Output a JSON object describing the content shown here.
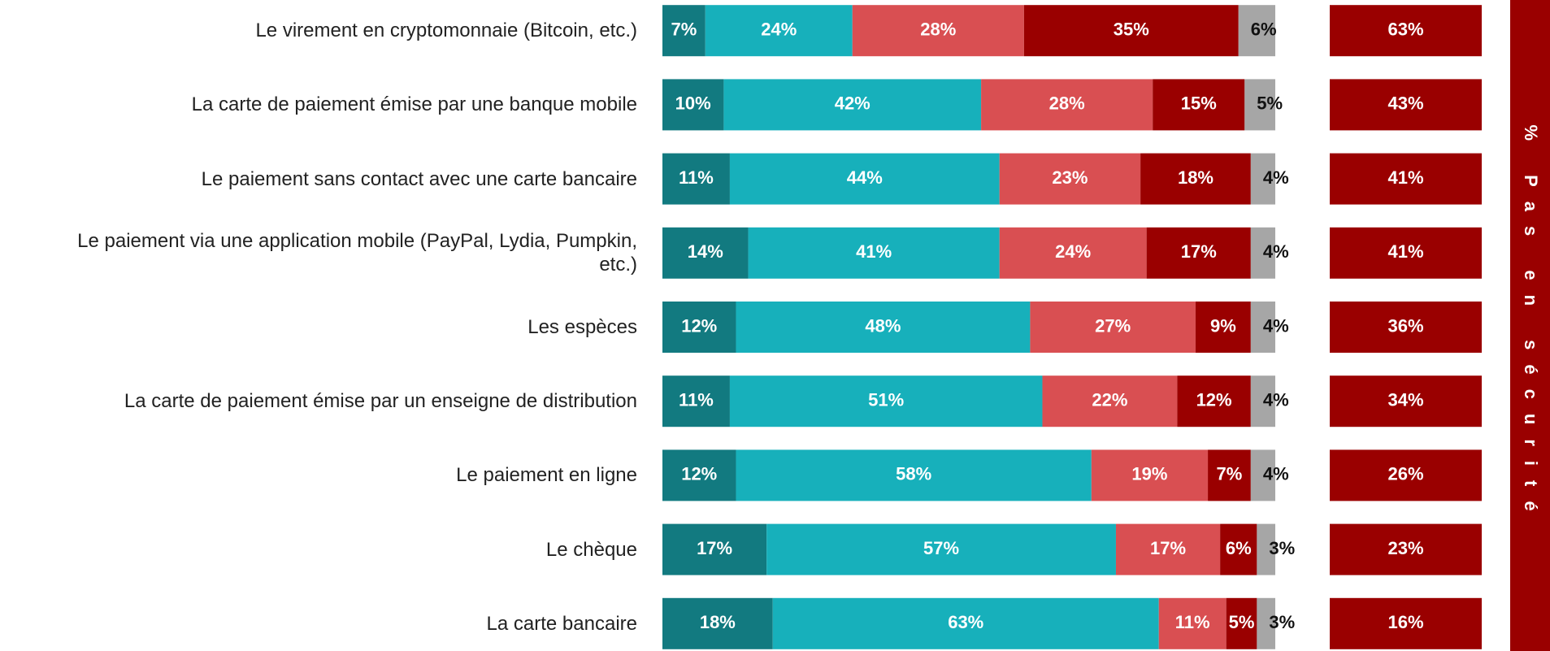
{
  "chart_data": {
    "type": "stacked-bar",
    "orientation": "horizontal",
    "title": "% Pas en sécurité",
    "categories": [
      "Le virement en cryptomonnaie (Bitcoin, etc.)",
      "La carte de paiement émise par une banque mobile",
      "Le paiement sans contact avec une carte bancaire",
      "Le paiement via une application mobile (PayPal, Lydia, Pumpkin, etc.)",
      "Les espèces",
      "La carte de paiement émise par un enseigne de distribution",
      "Le paiement en ligne",
      "Le chèque",
      "La carte bancaire"
    ],
    "xlim": [
      0,
      100
    ],
    "series": [
      {
        "color": "#127a80",
        "label_color": "#ffffff",
        "values": [
          7,
          10,
          11,
          14,
          12,
          11,
          12,
          17,
          18
        ],
        "value_labels": [
          "7%",
          "10%",
          "11%",
          "14%",
          "12%",
          "11%",
          "12%",
          "17%",
          "18%"
        ]
      },
      {
        "color": "#17b0bb",
        "label_color": "#ffffff",
        "values": [
          24,
          42,
          44,
          41,
          48,
          51,
          58,
          57,
          63
        ],
        "value_labels": [
          "24%",
          "42%",
          "44%",
          "41%",
          "48%",
          "51%",
          "58%",
          "57%",
          "63%"
        ]
      },
      {
        "color": "#d94f52",
        "label_color": "#ffffff",
        "values": [
          28,
          28,
          23,
          24,
          27,
          22,
          19,
          17,
          11
        ],
        "value_labels": [
          "28%",
          "28%",
          "23%",
          "24%",
          "27%",
          "22%",
          "19%",
          "17%",
          "11%"
        ]
      },
      {
        "color": "#9a0000",
        "label_color": "#ffffff",
        "values": [
          35,
          15,
          18,
          17,
          9,
          12,
          7,
          6,
          5
        ],
        "value_labels": [
          "35%",
          "15%",
          "18%",
          "17%",
          "9%",
          "12%",
          "7%",
          "6%",
          "5%"
        ]
      },
      {
        "color": "#a6a6a6",
        "label_color": "#111111",
        "values": [
          6,
          5,
          4,
          4,
          4,
          4,
          4,
          3,
          3
        ],
        "value_labels": [
          "6%",
          "5%",
          "4%",
          "4%",
          "4%",
          "4%",
          "4%",
          "3%",
          "3%"
        ]
      }
    ],
    "summary": {
      "color": "#9a0000",
      "values": [
        63,
        43,
        41,
        41,
        36,
        34,
        26,
        23,
        16
      ],
      "value_labels": [
        "63%",
        "43%",
        "41%",
        "41%",
        "36%",
        "34%",
        "26%",
        "23%",
        "16%"
      ]
    }
  }
}
